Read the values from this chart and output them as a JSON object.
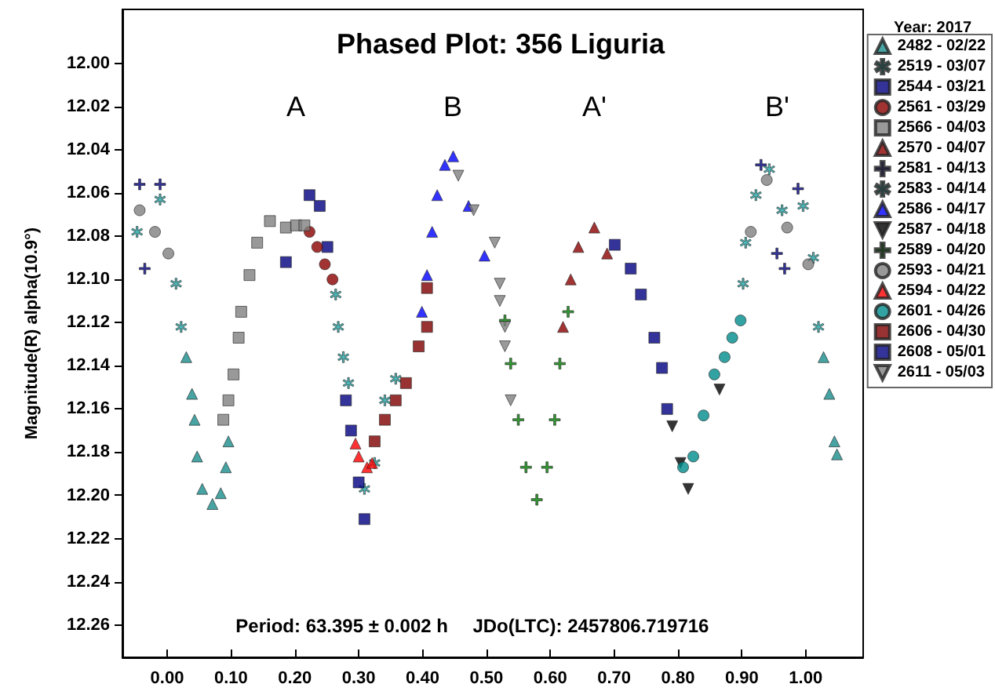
{
  "chart_data": {
    "type": "scatter",
    "title": "Phased Plot: 356 Liguria",
    "ylabel": "Magnitude(R) alpha(10.9°)",
    "legend_title": "Year: 2017",
    "legend": "top right",
    "grid": false,
    "xlim": [
      -0.07,
      1.09
    ],
    "ylim": [
      12.275,
      11.975
    ],
    "xticks": [
      {
        "value": 0,
        "label": "0.00"
      },
      {
        "value": 0.1,
        "label": "0.10"
      },
      {
        "value": 0.2,
        "label": "0.20"
      },
      {
        "value": 0.3,
        "label": "0.30"
      },
      {
        "value": 0.4,
        "label": "0.40"
      },
      {
        "value": 0.5,
        "label": "0.50"
      },
      {
        "value": 0.6,
        "label": "0.60"
      },
      {
        "value": 0.7,
        "label": "0.70"
      },
      {
        "value": 0.8,
        "label": "0.80"
      },
      {
        "value": 0.9,
        "label": "0.90"
      },
      {
        "value": 1,
        "label": "1.00"
      }
    ],
    "yticks": [
      {
        "value": 12,
        "label": "12.00"
      },
      {
        "value": 12.02,
        "label": "12.02"
      },
      {
        "value": 12.04,
        "label": "12.04"
      },
      {
        "value": 12.06,
        "label": "12.06"
      },
      {
        "value": 12.08,
        "label": "12.08"
      },
      {
        "value": 12.1,
        "label": "12.10"
      },
      {
        "value": 12.12,
        "label": "12.12"
      },
      {
        "value": 12.14,
        "label": "12.14"
      },
      {
        "value": 12.16,
        "label": "12.16"
      },
      {
        "value": 12.18,
        "label": "12.18"
      },
      {
        "value": 12.2,
        "label": "12.20"
      },
      {
        "value": 12.22,
        "label": "12.22"
      },
      {
        "value": 12.24,
        "label": "12.24"
      },
      {
        "value": 12.26,
        "label": "12.26"
      }
    ],
    "annotations": [
      "A",
      "B",
      "A'",
      "B'",
      "Period: 63.395 ± 0.002 h",
      "JDo(LTC): 2457806.719716"
    ],
    "series": [
      {
        "name": "2482 - 02/22",
        "color": "#1a8c8c",
        "marker": "triangle",
        "x": [
          0.03,
          0.039,
          0.043,
          0.047,
          0.055,
          0.071,
          0.084,
          0.092,
          0.096,
          1.028,
          1.037,
          1.045,
          1.049
        ],
        "values": [
          12.136,
          12.153,
          12.165,
          12.182,
          12.197,
          12.204,
          12.199,
          12.187,
          12.175,
          12.136,
          12.153,
          12.175,
          12.181
        ]
      },
      {
        "name": "2519 - 03/07",
        "color": "#20a5a5",
        "marker": "star",
        "x": [
          -0.047,
          -0.011,
          0.014,
          0.022,
          0.264,
          0.268,
          0.276,
          0.284,
          0.309,
          0.325,
          0.341,
          0.358
        ],
        "values": [
          12.078,
          12.063,
          12.102,
          12.122,
          12.107,
          12.122,
          12.136,
          12.148,
          12.197,
          12.185,
          12.156,
          12.146
        ]
      },
      {
        "name": "2544 - 03/21",
        "color": "#000080",
        "marker": "square",
        "x": [
          0.223,
          0.239,
          0.251,
          0.186,
          0.701,
          0.726,
          0.742,
          0.763,
          0.775,
          0.783
        ],
        "values": [
          12.061,
          12.066,
          12.085,
          12.092,
          12.084,
          12.095,
          12.107,
          12.127,
          12.141,
          12.16
        ]
      },
      {
        "name": "2561 - 03/29",
        "color": "#8b0000",
        "marker": "circle",
        "x": [
          0.223,
          0.235,
          0.247,
          0.259
        ],
        "values": [
          12.078,
          12.085,
          12.093,
          12.1
        ]
      },
      {
        "name": "2566 - 04/03",
        "color": "#808080",
        "marker": "square",
        "x": [
          0.088,
          0.096,
          0.104,
          0.112,
          0.116,
          0.129,
          0.141,
          0.161,
          0.186,
          0.202,
          0.215
        ],
        "values": [
          12.165,
          12.156,
          12.144,
          12.127,
          12.115,
          12.098,
          12.083,
          12.073,
          12.076,
          12.075,
          12.075
        ]
      },
      {
        "name": "2570 - 04/07",
        "color": "#8b0000",
        "marker": "triangle",
        "x": [
          0.62,
          0.632,
          0.644,
          0.669,
          0.689
        ],
        "values": [
          12.122,
          12.1,
          12.085,
          12.076,
          12.088
        ]
      },
      {
        "name": "2581 - 04/13",
        "color": "#000080",
        "marker": "cross",
        "x": [
          -0.043,
          -0.011,
          -0.035,
          0.93,
          0.955,
          0.967,
          0.988
        ],
        "values": [
          12.056,
          12.056,
          12.095,
          12.047,
          12.088,
          12.095,
          12.058
        ]
      },
      {
        "name": "2583 - 04/14",
        "color": "#20a5a5",
        "marker": "star",
        "x": [
          0.902,
          0.906,
          0.922,
          0.943,
          0.963,
          0.996,
          1.012,
          1.02
        ],
        "values": [
          12.102,
          12.083,
          12.061,
          12.049,
          12.068,
          12.066,
          12.09,
          12.122
        ]
      },
      {
        "name": "2586 - 04/17",
        "color": "#0000ff",
        "marker": "triangle",
        "x": [
          0.399,
          0.407,
          0.415,
          0.423,
          0.435,
          0.448,
          0.472,
          0.497
        ],
        "values": [
          12.115,
          12.098,
          12.078,
          12.061,
          12.047,
          12.043,
          12.066,
          12.089
        ]
      },
      {
        "name": "2587 - 04/18",
        "color": "#000000",
        "marker": "triangle-down",
        "x": [
          0.791,
          0.804,
          0.816,
          0.865
        ],
        "values": [
          12.168,
          12.185,
          12.197,
          12.151
        ]
      },
      {
        "name": "2589 - 04/20",
        "color": "#008000",
        "marker": "cross",
        "x": [
          0.529,
          0.538,
          0.55,
          0.562,
          0.579,
          0.595,
          0.607,
          0.615,
          0.628
        ],
        "values": [
          12.119,
          12.139,
          12.165,
          12.187,
          12.202,
          12.187,
          12.165,
          12.139,
          12.115
        ]
      },
      {
        "name": "2593 - 04/21",
        "color": "#808080",
        "marker": "circle",
        "x": [
          -0.043,
          -0.019,
          0.002,
          0.914,
          0.939,
          0.971,
          1.004
        ],
        "values": [
          12.068,
          12.078,
          12.088,
          12.078,
          12.054,
          12.076,
          12.093
        ]
      },
      {
        "name": "2594 - 04/22",
        "color": "#ff0000",
        "marker": "triangle",
        "x": [
          0.295,
          0.3,
          0.313,
          0.321
        ],
        "values": [
          12.176,
          12.182,
          12.187,
          12.185
        ]
      },
      {
        "name": "2601 - 04/26",
        "color": "#008b8b",
        "marker": "circle",
        "x": [
          0.808,
          0.824,
          0.84,
          0.857,
          0.873,
          0.885,
          0.898
        ],
        "values": [
          12.187,
          12.182,
          12.163,
          12.144,
          12.136,
          12.127,
          12.119
        ]
      },
      {
        "name": "2606 - 04/30",
        "color": "#800000",
        "marker": "square",
        "x": [
          0.325,
          0.341,
          0.358,
          0.374,
          0.394,
          0.407,
          0.407
        ],
        "values": [
          12.175,
          12.165,
          12.156,
          12.148,
          12.131,
          12.122,
          12.104
        ]
      },
      {
        "name": "2608 - 05/01",
        "color": "#000080",
        "marker": "square",
        "x": [
          0.28,
          0.288,
          0.3,
          0.309
        ],
        "values": [
          12.156,
          12.17,
          12.194,
          12.211
        ]
      },
      {
        "name": "2611 - 05/03",
        "color": "#808080",
        "marker": "triangle-down",
        "x": [
          0.456,
          0.48,
          0.513,
          0.521,
          0.529,
          0.521,
          0.529,
          0.538
        ],
        "values": [
          12.052,
          12.068,
          12.083,
          12.102,
          12.122,
          12.11,
          12.131,
          12.156
        ]
      }
    ]
  }
}
